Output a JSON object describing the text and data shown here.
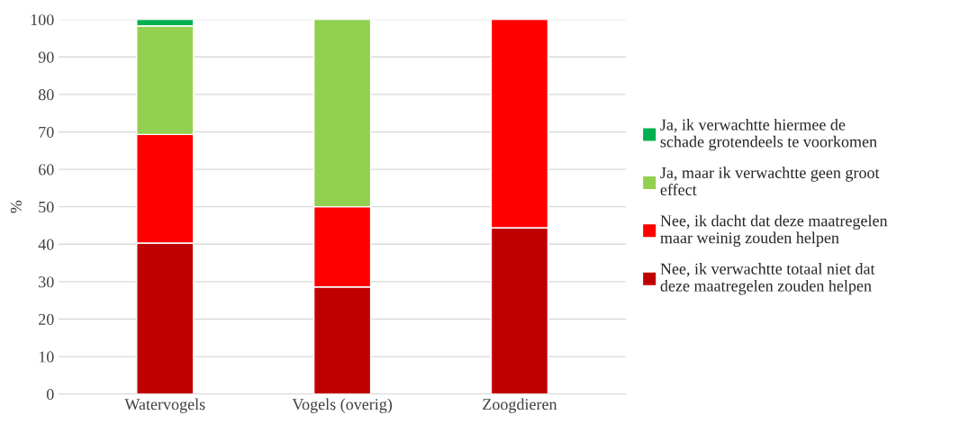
{
  "chart_data": {
    "type": "bar",
    "stacked": true,
    "ylabel": "%",
    "categories": [
      "Watervogels",
      "Vogels (overig)",
      "Zoogdieren"
    ],
    "series": [
      {
        "name": "Nee, ik verwachtte totaal niet dat deze maatregelen zouden helpen",
        "color": "#c00000",
        "values": [
          40.3,
          28.6,
          44.4
        ]
      },
      {
        "name": "Nee, ik dacht dat deze maatregelen maar weinig zouden helpen",
        "color": "#ff0000",
        "values": [
          29.0,
          21.4,
          55.6
        ]
      },
      {
        "name": "Ja, maar ik verwachtte geen groot effect",
        "color": "#92d050",
        "values": [
          29.0,
          50.0,
          null
        ]
      },
      {
        "name": "Ja, ik verwachtte hiermee de schade grotendeels te voorkomen",
        "color": "#00b050",
        "values": [
          1.7,
          null,
          null
        ]
      }
    ],
    "ylim": [
      0,
      100
    ],
    "yticks": [
      0,
      10,
      20,
      30,
      40,
      50,
      60,
      70,
      80,
      90,
      100
    ],
    "grid": "y",
    "legend": "right"
  }
}
